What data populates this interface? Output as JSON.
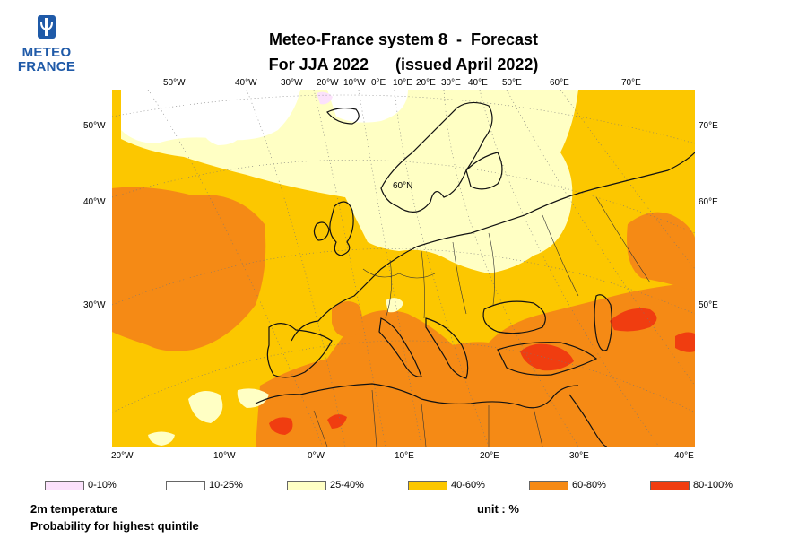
{
  "logo": {
    "line1": "METEO",
    "line2": "FRANCE"
  },
  "title": {
    "line1": "Meteo-France system 8  -  Forecast",
    "line2": "For JJA 2022      (issued April 2022)"
  },
  "map": {
    "top_lon_labels": [
      "50°W",
      "40°W",
      "30°W",
      "20°W",
      "10°W",
      "0°E",
      "10°E",
      "20°E",
      "30°E",
      "40°E",
      "50°E",
      "60°E",
      "70°E"
    ],
    "bottom_lon_labels": [
      "20°W",
      "10°W",
      "0°W",
      "10°E",
      "20°E",
      "30°E",
      "40°E"
    ],
    "left_lat_labels": [
      "50°W",
      "40°W",
      "30°W"
    ],
    "right_lat_labels": [
      "70°E",
      "60°E",
      "50°E"
    ],
    "center_label": "60°N",
    "colors": {
      "p0_10": "#fbe1fb",
      "p10_25": "#ffffff",
      "p25_40": "#ffffc4",
      "p40_60": "#fcc700",
      "p60_80": "#f58a15",
      "p80_100": "#f03d10",
      "coast": "#111111",
      "border": "#333333",
      "grid": "#777777"
    }
  },
  "legend": [
    {
      "label": "0-10%",
      "color": "#fbe1fb"
    },
    {
      "label": "10-25%",
      "color": "#ffffff"
    },
    {
      "label": "25-40%",
      "color": "#ffffc4"
    },
    {
      "label": "40-60%",
      "color": "#fcc700"
    },
    {
      "label": "60-80%",
      "color": "#f58a15"
    },
    {
      "label": "80-100%",
      "color": "#f03d10"
    }
  ],
  "footer": {
    "variable": "2m temperature",
    "description": "Probability for highest quintile",
    "unit": "unit : %"
  }
}
